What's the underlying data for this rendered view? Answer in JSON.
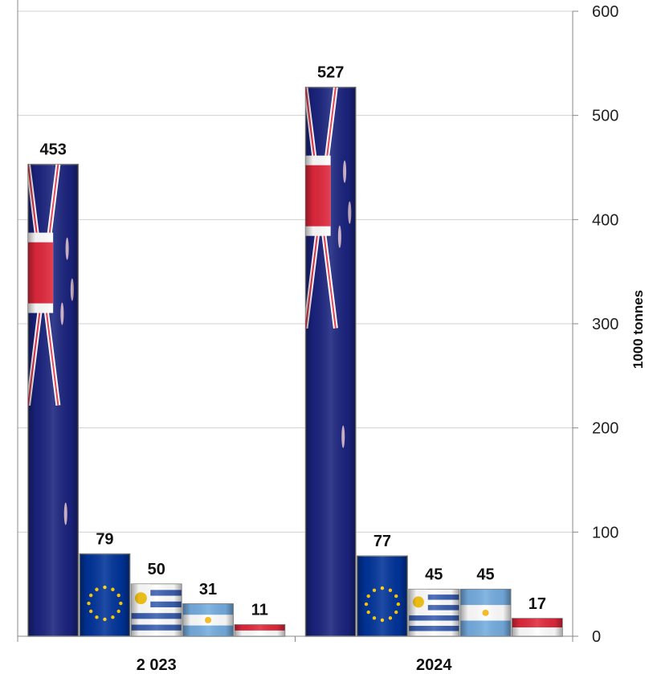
{
  "chart_data": {
    "type": "bar",
    "categories": [
      "2 023",
      "2024"
    ],
    "series": [
      {
        "flag": "new-zealand",
        "color": "#1a237e",
        "values": [
          453,
          527
        ]
      },
      {
        "flag": "european-union",
        "color": "#003399",
        "values": [
          79,
          77
        ]
      },
      {
        "flag": "uruguay",
        "color": "#3a5fb0",
        "values": [
          50,
          45
        ]
      },
      {
        "flag": "argentina",
        "color": "#74acdf",
        "values": [
          31,
          45
        ]
      },
      {
        "flag": "singapore",
        "color": "#e0283c",
        "values": [
          11,
          17
        ]
      }
    ],
    "ylabel": "1000 tonnes",
    "ylim": [
      0,
      600
    ],
    "yticks": [
      0,
      100,
      200,
      300,
      400,
      500,
      600
    ],
    "y_axis_side": "right",
    "grid": true,
    "legend": "none"
  }
}
